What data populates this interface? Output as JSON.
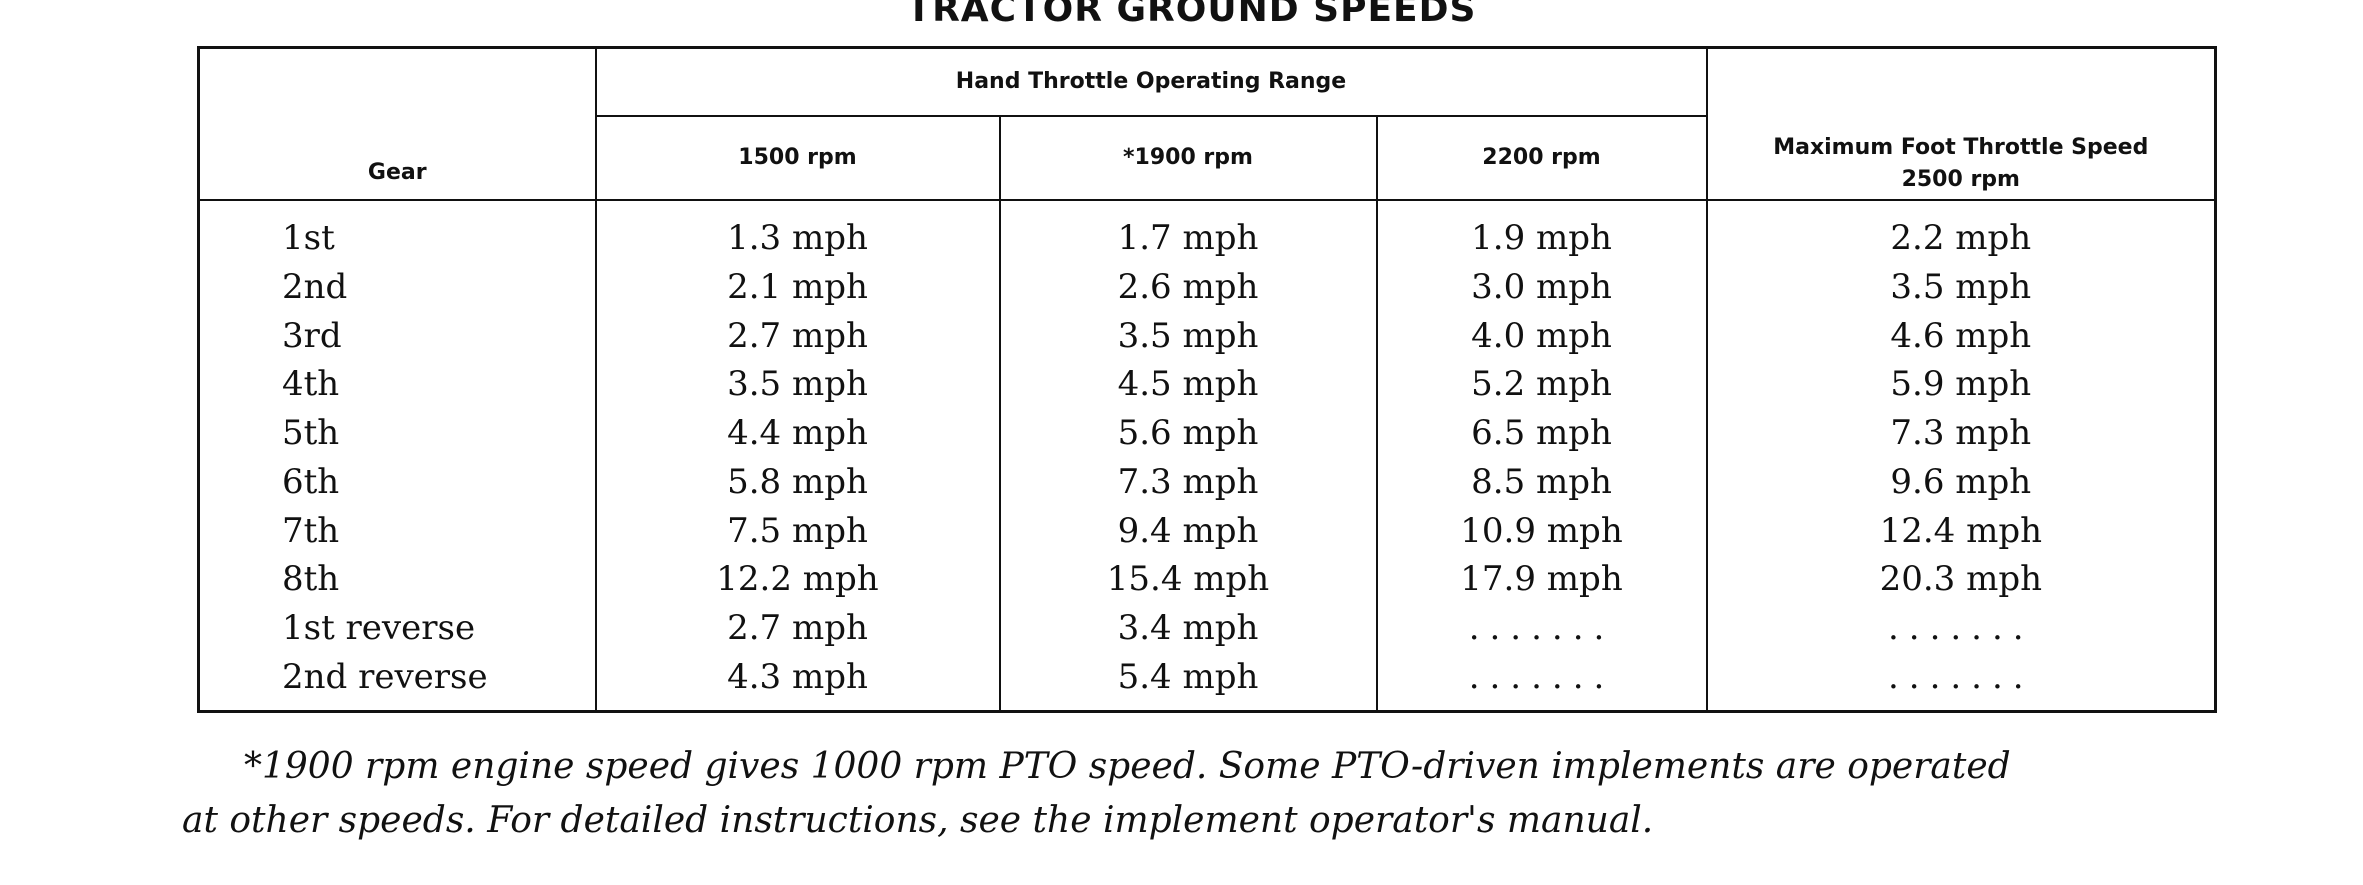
{
  "title": "TRACTOR GROUND SPEEDS",
  "table": {
    "gear_header": "Gear",
    "hand_throttle_header": "Hand Throttle Operating Range",
    "rpm_headers": [
      "1500 rpm",
      "*1900 rpm",
      "2200 rpm"
    ],
    "max_header_line1": "Maximum Foot Throttle Speed",
    "max_header_line2": "2500 rpm",
    "rows": [
      {
        "gear": "1st",
        "s1500": "1.3 mph",
        "s1900": "1.7 mph",
        "s2200": "1.9 mph",
        "s2500": "2.2 mph"
      },
      {
        "gear": "2nd",
        "s1500": "2.1 mph",
        "s1900": "2.6 mph",
        "s2200": "3.0 mph",
        "s2500": "3.5 mph"
      },
      {
        "gear": "3rd",
        "s1500": "2.7 mph",
        "s1900": "3.5 mph",
        "s2200": "4.0 mph",
        "s2500": "4.6 mph"
      },
      {
        "gear": "4th",
        "s1500": "3.5 mph",
        "s1900": "4.5 mph",
        "s2200": "5.2 mph",
        "s2500": "5.9 mph"
      },
      {
        "gear": "5th",
        "s1500": "4.4 mph",
        "s1900": "5.6 mph",
        "s2200": "6.5 mph",
        "s2500": "7.3 mph"
      },
      {
        "gear": "6th",
        "s1500": "5.8 mph",
        "s1900": "7.3 mph",
        "s2200": "8.5 mph",
        "s2500": "9.6 mph"
      },
      {
        "gear": "7th",
        "s1500": "7.5 mph",
        "s1900": "9.4 mph",
        "s2200": "10.9 mph",
        "s2500": "12.4 mph"
      },
      {
        "gear": "8th",
        "s1500": "12.2 mph",
        "s1900": "15.4 mph",
        "s2200": "17.9 mph",
        "s2500": "20.3 mph"
      },
      {
        "gear": "1st reverse",
        "s1500": "2.7 mph",
        "s1900": "3.4 mph",
        "s2200": ".......",
        "s2500": "......."
      },
      {
        "gear": "2nd reverse",
        "s1500": "4.3 mph",
        "s1900": "5.4 mph",
        "s2200": ".......",
        "s2500": "......."
      }
    ]
  },
  "footnote": {
    "line1": "*1900 rpm engine speed gives 1000 rpm PTO speed. Some PTO-driven implements are operated",
    "line2": "at other speeds. For detailed instructions, see the implement operator's manual."
  }
}
